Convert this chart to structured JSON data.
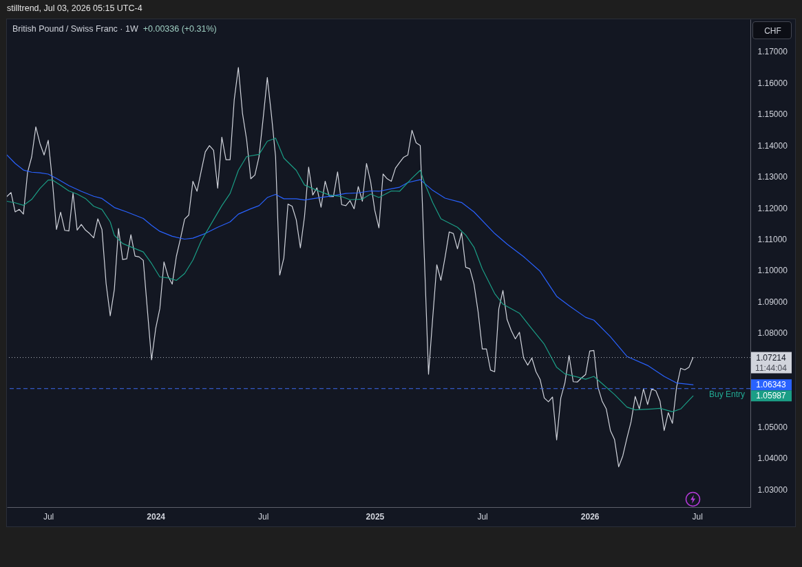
{
  "chart_data": {
    "type": "line",
    "title": "British Pound / Swiss Franc · 1W",
    "subtitle": "+0.00336 (+0.31%)",
    "ylabel": "CHF",
    "annotations": [
      "stilltrend, Jul 03, 2026 05:15 UTC-4",
      "1.07214",
      "1.06343",
      "1.05987",
      "11:44:04"
    ],
    "x": [
      "2023-04-24",
      "2023-05-01",
      "2023-05-08",
      "2023-05-15",
      "2023-05-22",
      "2023-05-29",
      "2023-06-05",
      "2023-06-12",
      "2023-06-19",
      "2023-06-26",
      "2023-07-03",
      "2023-07-10",
      "2023-07-17",
      "2023-07-24",
      "2023-07-31",
      "2023-08-07",
      "2023-08-14",
      "2023-08-21",
      "2023-08-28",
      "2023-09-04",
      "2023-09-11",
      "2023-09-18",
      "2023-09-25",
      "2023-10-02",
      "2023-10-09",
      "2023-10-16",
      "2023-10-23",
      "2023-10-30",
      "2023-11-06",
      "2023-11-13",
      "2023-11-20",
      "2023-11-27",
      "2023-12-04",
      "2023-12-11",
      "2023-12-18",
      "2023-12-25",
      "2024-01-01",
      "2024-01-08",
      "2024-01-15",
      "2024-01-22",
      "2024-01-29",
      "2024-02-05",
      "2024-02-12",
      "2024-02-19",
      "2024-02-26",
      "2024-03-04",
      "2024-03-11",
      "2024-03-18",
      "2024-03-25",
      "2024-04-01",
      "2024-04-08",
      "2024-04-15",
      "2024-04-22",
      "2024-04-29",
      "2024-05-06",
      "2024-05-13",
      "2024-05-20",
      "2024-05-27",
      "2024-06-03",
      "2024-06-10",
      "2024-06-17",
      "2024-06-24",
      "2024-07-01",
      "2024-07-08",
      "2024-07-15",
      "2024-07-22",
      "2024-07-29",
      "2024-08-05",
      "2024-08-12",
      "2024-08-19",
      "2024-08-26",
      "2024-09-02",
      "2024-09-09",
      "2024-09-16",
      "2024-09-23",
      "2024-09-30",
      "2024-10-07",
      "2024-10-14",
      "2024-10-21",
      "2024-10-28",
      "2024-11-04",
      "2024-11-11",
      "2024-11-18",
      "2024-11-25",
      "2024-12-02",
      "2024-12-09",
      "2024-12-16",
      "2024-12-23",
      "2024-12-30",
      "2025-01-06",
      "2025-01-13",
      "2025-01-20",
      "2025-01-27",
      "2025-02-03",
      "2025-02-10",
      "2025-02-17",
      "2025-02-24",
      "2025-03-03",
      "2025-03-10",
      "2025-03-17",
      "2025-03-24",
      "2025-03-31",
      "2025-04-07",
      "2025-04-14",
      "2025-04-21",
      "2025-04-28",
      "2025-05-05",
      "2025-05-12",
      "2025-05-19",
      "2025-05-26",
      "2025-06-02",
      "2025-06-09",
      "2025-06-16",
      "2025-06-23",
      "2025-06-30",
      "2025-07-07",
      "2025-07-14",
      "2025-07-21",
      "2025-07-28",
      "2025-08-04",
      "2025-08-11",
      "2025-08-18",
      "2025-08-25",
      "2025-09-01",
      "2025-09-08",
      "2025-09-15",
      "2025-09-22",
      "2025-09-29",
      "2025-10-06",
      "2025-10-13",
      "2025-10-20",
      "2025-10-27",
      "2025-11-03",
      "2025-11-10",
      "2025-11-17",
      "2025-11-24",
      "2025-12-01",
      "2025-12-08",
      "2025-12-15",
      "2025-12-22",
      "2025-12-29",
      "2026-01-05",
      "2026-01-12",
      "2026-01-19",
      "2026-01-26",
      "2026-02-02",
      "2026-02-09",
      "2026-02-16",
      "2026-02-23",
      "2026-03-02",
      "2026-03-09",
      "2026-03-16",
      "2026-03-23",
      "2026-03-30",
      "2026-04-06",
      "2026-04-13",
      "2026-04-20",
      "2026-04-27",
      "2026-05-04",
      "2026-05-11",
      "2026-05-18",
      "2026-05-25",
      "2026-06-01",
      "2026-06-08",
      "2026-06-15",
      "2026-06-22",
      "2026-06-29"
    ],
    "series": [
      {
        "color": "#d1d4dc",
        "values": [
          1.1236,
          1.1249,
          1.1187,
          1.1195,
          1.118,
          1.1313,
          1.1363,
          1.1459,
          1.1406,
          1.1369,
          1.1416,
          1.1288,
          1.1131,
          1.1186,
          1.1128,
          1.1126,
          1.1247,
          1.1129,
          1.1147,
          1.1129,
          1.1118,
          1.1104,
          1.1165,
          1.1131,
          1.0958,
          1.0855,
          1.0939,
          1.1134,
          1.1035,
          1.1037,
          1.1114,
          1.1046,
          1.1043,
          1.1032,
          1.0872,
          1.0714,
          1.0814,
          1.0878,
          1.1027,
          1.0981,
          1.0956,
          1.1045,
          1.1102,
          1.1164,
          1.1177,
          1.1285,
          1.1253,
          1.1317,
          1.1379,
          1.1399,
          1.1384,
          1.1263,
          1.1426,
          1.1354,
          1.1354,
          1.1546,
          1.1649,
          1.1502,
          1.1418,
          1.1293,
          1.1305,
          1.1364,
          1.1487,
          1.1617,
          1.1497,
          1.1364,
          1.0985,
          1.104,
          1.1212,
          1.1205,
          1.1162,
          1.1072,
          1.1172,
          1.133,
          1.1241,
          1.1264,
          1.1202,
          1.1285,
          1.1236,
          1.1236,
          1.1315,
          1.121,
          1.1207,
          1.1223,
          1.1197,
          1.1268,
          1.1221,
          1.1342,
          1.1283,
          1.1192,
          1.1136,
          1.1308,
          1.1293,
          1.1285,
          1.1327,
          1.1345,
          1.1362,
          1.1369,
          1.1448,
          1.1408,
          1.1399,
          1.1039,
          1.0668,
          1.0846,
          1.1018,
          1.0968,
          1.1042,
          1.1123,
          1.1118,
          1.1069,
          1.1121,
          1.101,
          1.1005,
          1.0956,
          1.0867,
          1.0749,
          1.0749,
          1.0681,
          1.0676,
          1.0877,
          1.0936,
          1.0843,
          1.0808,
          1.0781,
          1.0802,
          1.072,
          1.0697,
          1.072,
          1.0676,
          1.0651,
          1.0592,
          1.058,
          1.0595,
          1.0458,
          1.0592,
          1.0641,
          1.0728,
          1.0644,
          1.0643,
          1.0656,
          1.0667,
          1.0742,
          1.0744,
          1.0626,
          1.0582,
          1.0557,
          1.0488,
          1.0459,
          1.0372,
          1.0407,
          1.0464,
          1.0516,
          1.0597,
          1.0557,
          1.0621,
          1.0571,
          1.0621,
          1.0615,
          1.0582,
          1.0488,
          1.0545,
          1.0511,
          1.0626,
          1.0687,
          1.0682,
          1.069,
          1.07214
        ]
      },
      {
        "color": "#2962ff",
        "x": [
          "2023-04-24",
          "2023-05-08",
          "2023-05-22",
          "2023-06-05",
          "2023-06-19",
          "2023-07-03",
          "2023-07-17",
          "2023-08-07",
          "2023-08-28",
          "2023-09-18",
          "2023-10-02",
          "2023-10-23",
          "2023-11-13",
          "2023-12-11",
          "2023-12-25",
          "2024-01-08",
          "2024-01-29",
          "2024-02-19",
          "2024-03-04",
          "2024-03-25",
          "2024-04-15",
          "2024-05-06",
          "2024-05-20",
          "2024-06-10",
          "2024-06-24",
          "2024-07-08",
          "2024-07-22",
          "2024-08-05",
          "2024-08-26",
          "2024-09-09",
          "2024-09-30",
          "2024-10-28",
          "2024-11-18",
          "2024-12-09",
          "2024-12-30",
          "2025-01-13",
          "2025-02-03",
          "2025-02-17",
          "2025-03-03",
          "2025-03-24",
          "2025-04-14",
          "2025-05-05",
          "2025-06-02",
          "2025-06-23",
          "2025-07-28",
          "2025-08-18",
          "2025-09-15",
          "2025-10-13",
          "2025-11-10",
          "2025-12-01",
          "2025-12-29",
          "2026-01-12",
          "2026-02-09",
          "2026-03-09",
          "2026-04-13",
          "2026-05-11",
          "2026-06-01",
          "2026-06-29"
        ],
        "values": [
          1.1369,
          1.1342,
          1.1321,
          1.1314,
          1.1312,
          1.1308,
          1.1294,
          1.1271,
          1.1253,
          1.1237,
          1.123,
          1.1201,
          1.1187,
          1.1166,
          1.1144,
          1.1125,
          1.1109,
          1.11,
          1.1103,
          1.1118,
          1.1138,
          1.1155,
          1.118,
          1.1197,
          1.1207,
          1.1233,
          1.1243,
          1.1229,
          1.1229,
          1.1225,
          1.1231,
          1.1239,
          1.1246,
          1.1248,
          1.1254,
          1.1253,
          1.1261,
          1.1266,
          1.1281,
          1.129,
          1.1256,
          1.1231,
          1.1217,
          1.1187,
          1.1118,
          1.1084,
          1.1044,
          1.0997,
          1.0917,
          1.0887,
          1.085,
          1.0841,
          1.0788,
          1.0725,
          1.0696,
          1.0661,
          1.064,
          1.06343
        ]
      },
      {
        "color": "#1b9e86",
        "x": [
          "2023-04-24",
          "2023-05-08",
          "2023-05-22",
          "2023-06-05",
          "2023-06-19",
          "2023-07-03",
          "2023-07-10",
          "2023-07-24",
          "2023-08-07",
          "2023-08-21",
          "2023-09-04",
          "2023-09-18",
          "2023-10-02",
          "2023-10-16",
          "2023-10-23",
          "2023-11-06",
          "2023-11-20",
          "2023-12-11",
          "2023-12-25",
          "2024-01-08",
          "2024-01-22",
          "2024-02-05",
          "2024-02-19",
          "2024-03-04",
          "2024-03-18",
          "2024-04-08",
          "2024-04-22",
          "2024-05-06",
          "2024-05-20",
          "2024-06-03",
          "2024-06-24",
          "2024-07-08",
          "2024-07-22",
          "2024-08-05",
          "2024-08-26",
          "2024-09-09",
          "2024-09-30",
          "2024-10-21",
          "2024-11-11",
          "2024-11-25",
          "2024-12-16",
          "2024-12-30",
          "2025-01-13",
          "2025-02-03",
          "2025-02-17",
          "2025-03-10",
          "2025-03-24",
          "2025-03-31",
          "2025-04-14",
          "2025-04-28",
          "2025-05-26",
          "2025-06-09",
          "2025-06-23",
          "2025-07-07",
          "2025-07-28",
          "2025-08-11",
          "2025-09-08",
          "2025-09-29",
          "2025-10-20",
          "2025-11-10",
          "2025-11-24",
          "2025-12-15",
          "2025-12-29",
          "2026-01-12",
          "2026-01-26",
          "2026-02-16",
          "2026-03-09",
          "2026-03-23",
          "2026-04-20",
          "2026-05-04",
          "2026-05-25",
          "2026-06-08",
          "2026-06-29"
        ],
        "values": [
          1.1221,
          1.1216,
          1.1208,
          1.1227,
          1.1262,
          1.1289,
          1.1289,
          1.1272,
          1.1254,
          1.1244,
          1.123,
          1.1205,
          1.1195,
          1.1155,
          1.1112,
          1.1086,
          1.1075,
          1.1059,
          1.1022,
          1.0979,
          1.0976,
          1.0968,
          1.099,
          1.1033,
          1.1094,
          1.1162,
          1.1207,
          1.1246,
          1.132,
          1.1364,
          1.1371,
          1.1413,
          1.1423,
          1.1359,
          1.132,
          1.1273,
          1.1256,
          1.1241,
          1.1236,
          1.1226,
          1.1228,
          1.1244,
          1.1233,
          1.1254,
          1.1253,
          1.1295,
          1.132,
          1.1281,
          1.1217,
          1.1165,
          1.1138,
          1.1113,
          1.1074,
          1.1005,
          1.0926,
          1.0892,
          1.0863,
          1.0813,
          1.0764,
          1.069,
          1.0669,
          1.0659,
          1.0652,
          1.0661,
          1.0638,
          1.0603,
          1.0563,
          1.0554,
          1.0557,
          1.0559,
          1.0548,
          1.0557,
          1.05987
        ]
      }
    ],
    "xlim": [
      "2023-04-24",
      "2026-10-04"
    ],
    "ylim": [
      1.0243,
      1.1803
    ],
    "xticks": [
      {
        "value": "2023-07-03",
        "label": "Jul"
      },
      {
        "value": "2024-01-01",
        "label": "2024"
      },
      {
        "value": "2024-07-01",
        "label": "Jul"
      },
      {
        "value": "2025-01-06",
        "label": "2025"
      },
      {
        "value": "2025-07-07",
        "label": "Jul"
      },
      {
        "value": "2026-01-05",
        "label": "2026"
      },
      {
        "value": "2026-07-06",
        "label": "Jul"
      }
    ],
    "yticks": [
      {
        "value": 1.03,
        "label": "1.03000"
      },
      {
        "value": 1.04,
        "label": "1.04000"
      },
      {
        "value": 1.05,
        "label": "1.05000"
      },
      {
        "value": 1.08,
        "label": "1.08000"
      },
      {
        "value": 1.09,
        "label": "1.09000"
      },
      {
        "value": 1.1,
        "label": "1.10000"
      },
      {
        "value": 1.11,
        "label": "1.11000"
      },
      {
        "value": 1.12,
        "label": "1.12000"
      },
      {
        "value": 1.13,
        "label": "1.13000"
      },
      {
        "value": 1.14,
        "label": "1.14000"
      },
      {
        "value": 1.15,
        "label": "1.15000"
      },
      {
        "value": 1.16,
        "label": "1.16000"
      },
      {
        "value": 1.17,
        "label": "1.17000"
      }
    ],
    "grid": false,
    "ref_lines": [
      {
        "axis": "y",
        "value": 1.07214,
        "line_style": "dotted",
        "color": "#b2b5be"
      },
      {
        "axis": "y",
        "value": 1.0622,
        "label": "Buy Entry",
        "line_style": "dashed",
        "color": "#3d6cf0"
      }
    ]
  }
}
